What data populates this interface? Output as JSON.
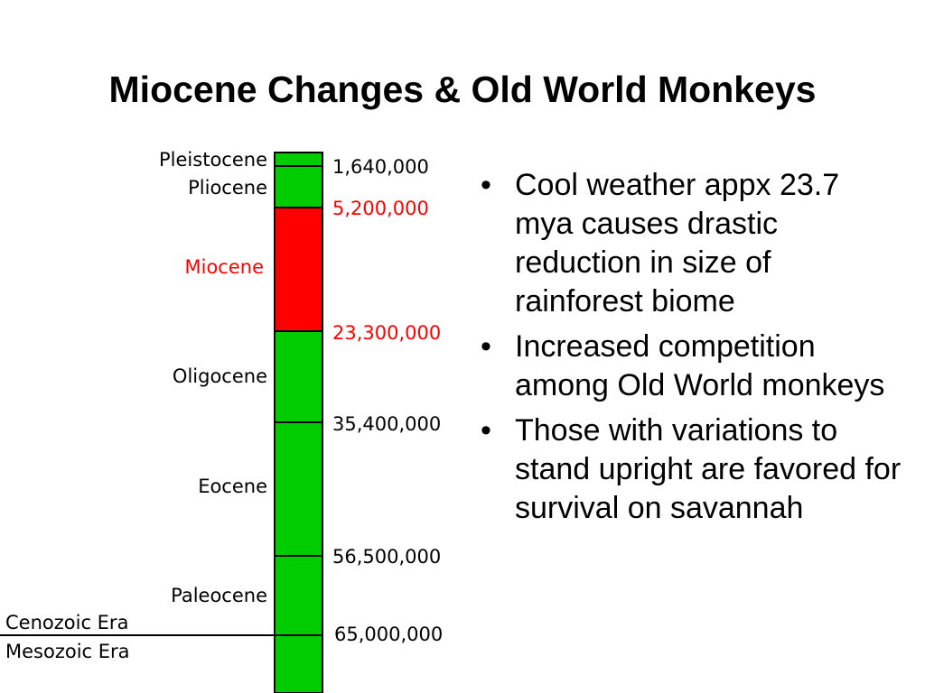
{
  "slide": {
    "title": "Miocene Changes & Old World Monkeys"
  },
  "colors": {
    "highlight": "#ff0000",
    "epoch_fill": "#00cc00",
    "text": "#000000"
  },
  "timescale": {
    "epochs": [
      {
        "name": "Pleistocene",
        "color": "#00cc00",
        "highlighted": false
      },
      {
        "name": "Pliocene",
        "color": "#00cc00",
        "highlighted": false
      },
      {
        "name": "Miocene",
        "color": "#ff0000",
        "highlighted": true
      },
      {
        "name": "Oligocene",
        "color": "#00cc00",
        "highlighted": false
      },
      {
        "name": "Eocene",
        "color": "#00cc00",
        "highlighted": false
      },
      {
        "name": "Paleocene",
        "color": "#00cc00",
        "highlighted": false
      }
    ],
    "boundaries": [
      {
        "years": "1,640,000",
        "highlighted": false
      },
      {
        "years": "5,200,000",
        "highlighted": true
      },
      {
        "years": "23,300,000",
        "highlighted": true
      },
      {
        "years": "35,400,000",
        "highlighted": false
      },
      {
        "years": "56,500,000",
        "highlighted": false
      },
      {
        "years": "65,000,000",
        "highlighted": false
      }
    ],
    "eras": {
      "upper": "Cenozoic Era",
      "lower": "Mesozoic Era"
    }
  },
  "bullets": [
    "Cool weather appx 23.7 mya causes drastic reduction in size of rainforest biome",
    "Increased competition among Old World monkeys",
    "Those with variations to stand upright are favored for survival on savannah"
  ],
  "bullet_symbol": "•"
}
